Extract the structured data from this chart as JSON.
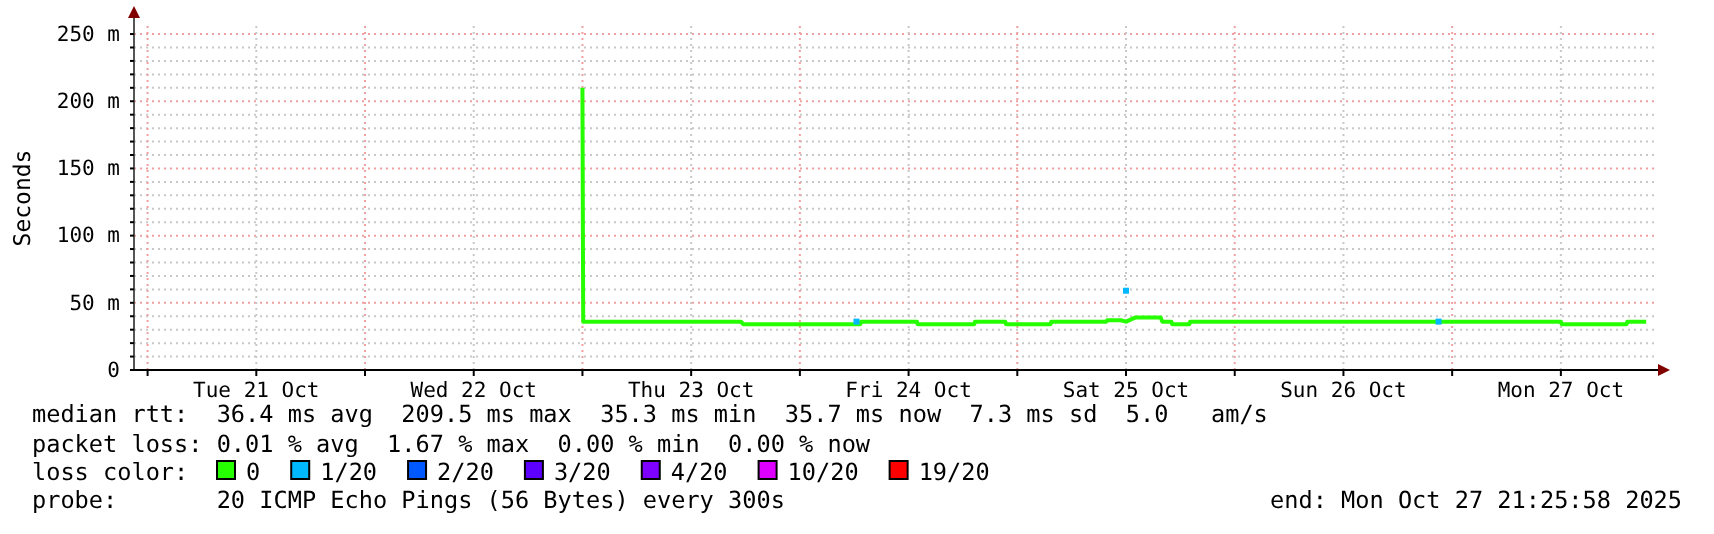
{
  "chart_data": {
    "type": "line",
    "ylabel": "Seconds",
    "legend_title": "loss color:",
    "legend": "bottom",
    "grid": true,
    "xlim": [
      "2025-10-20T22:30",
      "2025-10-27T22:30"
    ],
    "xticks": [
      {
        "value": "2025-10-21T00:00",
        "label": null
      },
      {
        "value": "2025-10-21T12:00",
        "label": "Tue 21 Oct"
      },
      {
        "value": "2025-10-22T00:00",
        "label": null
      },
      {
        "value": "2025-10-22T12:00",
        "label": "Wed 22 Oct"
      },
      {
        "value": "2025-10-23T00:00",
        "label": null
      },
      {
        "value": "2025-10-23T12:00",
        "label": "Thu 23 Oct"
      },
      {
        "value": "2025-10-24T00:00",
        "label": null
      },
      {
        "value": "2025-10-24T12:00",
        "label": "Fri 24 Oct"
      },
      {
        "value": "2025-10-25T00:00",
        "label": null
      },
      {
        "value": "2025-10-25T12:00",
        "label": "Sat 25 Oct"
      },
      {
        "value": "2025-10-26T00:00",
        "label": null
      },
      {
        "value": "2025-10-26T12:00",
        "label": "Sun 26 Oct"
      },
      {
        "value": "2025-10-27T00:00",
        "label": null
      },
      {
        "value": "2025-10-27T12:00",
        "label": "Mon 27 Oct"
      }
    ],
    "ylim": [
      0,
      256
    ],
    "yticks": [
      0,
      {
        "value": 10,
        "label": null
      },
      {
        "value": 20,
        "label": null
      },
      {
        "value": 30,
        "label": null
      },
      {
        "value": 40,
        "label": null
      },
      {
        "value": 50,
        "label": "50 m"
      },
      {
        "value": 60,
        "label": null
      },
      {
        "value": 70,
        "label": null
      },
      {
        "value": 80,
        "label": null
      },
      {
        "value": 90,
        "label": null
      },
      {
        "value": 100,
        "label": "100 m"
      },
      {
        "value": 110,
        "label": null
      },
      {
        "value": 120,
        "label": null
      },
      {
        "value": 130,
        "label": null
      },
      {
        "value": 140,
        "label": null
      },
      {
        "value": 150,
        "label": "150 m"
      },
      {
        "value": 160,
        "label": null
      },
      {
        "value": 170,
        "label": null
      },
      {
        "value": 180,
        "label": null
      },
      {
        "value": 190,
        "label": null
      },
      {
        "value": 200,
        "label": "200 m"
      },
      {
        "value": 210,
        "label": null
      },
      {
        "value": 220,
        "label": null
      },
      {
        "value": 230,
        "label": null
      },
      {
        "value": 240,
        "label": null
      },
      {
        "value": 250,
        "label": "250 m"
      }
    ],
    "series": [
      {
        "name": "0",
        "color": "#26ff00",
        "x": [
          "2025-10-23T00:00",
          "2025-10-23T00:05",
          "2025-10-23T17:30",
          "2025-10-23T17:45",
          "2025-10-24T06:40",
          "2025-10-24T06:45",
          "2025-10-24T12:55",
          "2025-10-24T13:00",
          "2025-10-24T19:15",
          "2025-10-24T19:20",
          "2025-10-24T22:40",
          "2025-10-24T22:45",
          "2025-10-25T03:40",
          "2025-10-25T03:45",
          "2025-10-25T09:50",
          "2025-10-25T09:55",
          "2025-10-25T11:25",
          "2025-10-25T12:00",
          "2025-10-25T13:00",
          "2025-10-25T15:50",
          "2025-10-25T16:00",
          "2025-10-25T17:00",
          "2025-10-25T17:05",
          "2025-10-25T19:00",
          "2025-10-25T19:05",
          "2025-10-27T12:00",
          "2025-10-27T12:05",
          "2025-10-27T19:15",
          "2025-10-27T19:20",
          "2025-10-27T21:25"
        ],
        "values": [
          210,
          36,
          36,
          34,
          34,
          36,
          36,
          34,
          34,
          36,
          36,
          34,
          34,
          36,
          36,
          37,
          37,
          36,
          39,
          39,
          36,
          36,
          34,
          34,
          36,
          36,
          34,
          34,
          36,
          36
        ]
      },
      {
        "name": "1/20",
        "color": "#00b8ff",
        "type": "scatter",
        "x": [
          "2025-10-24T06:15",
          "2025-10-25T12:00",
          "2025-10-26T22:30"
        ],
        "values": [
          36,
          59,
          36
        ]
      },
      {
        "name": "2/20",
        "color": "#0059ff"
      },
      {
        "name": "3/20",
        "color": "#5e00ff"
      },
      {
        "name": "4/20",
        "color": "#7e00ff"
      },
      {
        "name": "10/20",
        "color": "#dd00ff"
      },
      {
        "name": "19/20",
        "color": "#ff0000"
      }
    ],
    "annotations": [
      "median rtt:  36.4 ms avg  209.5 ms max  35.3 ms min  35.7 ms now  7.3 ms sd  5.0   am/s",
      "packet loss: 0.01 % avg  1.67 % max  0.00 % min  0.00 % now",
      "probe:       20 ICMP Echo Pings (56 Bytes) every 300s",
      "end: Mon Oct 27 21:25:58 2025"
    ]
  }
}
